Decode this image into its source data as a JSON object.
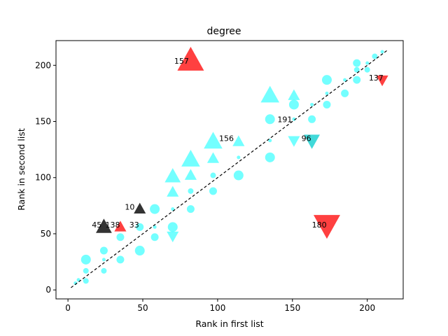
{
  "chart_data": {
    "type": "scatter",
    "title": "degree",
    "xlabel": "Rank in first list",
    "ylabel": "Rank in second list",
    "xlim": [
      -8,
      224
    ],
    "ylim": [
      -8,
      222
    ],
    "xticks": [
      0,
      50,
      100,
      150,
      200
    ],
    "yticks": [
      0,
      50,
      100,
      150,
      200
    ],
    "grid": false,
    "diagonal_reference": {
      "from": [
        2,
        2
      ],
      "to": [
        213,
        213
      ],
      "style": "dashed",
      "color": "#000000"
    },
    "colors": {
      "cyan": "#00FFFF",
      "red": "#FF0000",
      "black": "#000000",
      "teal": "#00CCCC"
    },
    "points": [
      {
        "x": 5,
        "y": 6,
        "marker": "circle",
        "size": "xs",
        "color": "cyan"
      },
      {
        "x": 7,
        "y": 9,
        "marker": "circle",
        "size": "xs",
        "color": "cyan"
      },
      {
        "x": 12,
        "y": 8,
        "marker": "circle",
        "size": "s",
        "color": "cyan"
      },
      {
        "x": 12,
        "y": 17,
        "marker": "circle",
        "size": "s",
        "color": "cyan"
      },
      {
        "x": 12,
        "y": 27,
        "marker": "circle",
        "size": "l",
        "color": "cyan"
      },
      {
        "x": 24,
        "y": 17,
        "marker": "circle",
        "size": "s",
        "color": "cyan"
      },
      {
        "x": 24,
        "y": 27,
        "marker": "circle",
        "size": "xs",
        "color": "cyan"
      },
      {
        "x": 24,
        "y": 35,
        "marker": "circle",
        "size": "m",
        "color": "cyan"
      },
      {
        "x": 35,
        "y": 27,
        "marker": "circle",
        "size": "m",
        "color": "cyan"
      },
      {
        "x": 35,
        "y": 47,
        "marker": "circle",
        "size": "m",
        "color": "cyan"
      },
      {
        "x": 48,
        "y": 35,
        "marker": "circle",
        "size": "l",
        "color": "cyan"
      },
      {
        "x": 48,
        "y": 56,
        "marker": "circle",
        "size": "m",
        "color": "cyan"
      },
      {
        "x": 58,
        "y": 47,
        "marker": "circle",
        "size": "m",
        "color": "cyan"
      },
      {
        "x": 58,
        "y": 56,
        "marker": "circle",
        "size": "xs",
        "color": "cyan"
      },
      {
        "x": 58,
        "y": 72,
        "marker": "circle",
        "size": "l",
        "color": "cyan"
      },
      {
        "x": 70,
        "y": 56,
        "marker": "circle",
        "size": "l",
        "color": "cyan"
      },
      {
        "x": 70,
        "y": 72,
        "marker": "circle",
        "size": "xs",
        "color": "cyan"
      },
      {
        "x": 82,
        "y": 72,
        "marker": "circle",
        "size": "m",
        "color": "cyan"
      },
      {
        "x": 82,
        "y": 88,
        "marker": "circle",
        "size": "s",
        "color": "cyan"
      },
      {
        "x": 97,
        "y": 88,
        "marker": "circle",
        "size": "m",
        "color": "cyan"
      },
      {
        "x": 97,
        "y": 102,
        "marker": "circle",
        "size": "s",
        "color": "cyan"
      },
      {
        "x": 114,
        "y": 102,
        "marker": "circle",
        "size": "l",
        "color": "cyan"
      },
      {
        "x": 114,
        "y": 118,
        "marker": "circle",
        "size": "xs",
        "color": "cyan"
      },
      {
        "x": 135,
        "y": 118,
        "marker": "circle",
        "size": "l",
        "color": "cyan"
      },
      {
        "x": 135,
        "y": 133,
        "marker": "circle",
        "size": "xs",
        "color": "cyan"
      },
      {
        "x": 135,
        "y": 152,
        "marker": "circle",
        "size": "l",
        "color": "cyan"
      },
      {
        "x": 151,
        "y": 152,
        "marker": "circle",
        "size": "xs",
        "color": "cyan"
      },
      {
        "x": 151,
        "y": 165,
        "marker": "circle",
        "size": "l",
        "color": "cyan"
      },
      {
        "x": 163,
        "y": 152,
        "marker": "circle",
        "size": "m",
        "color": "cyan"
      },
      {
        "x": 163,
        "y": 165,
        "marker": "circle",
        "size": "xs",
        "color": "cyan"
      },
      {
        "x": 173,
        "y": 165,
        "marker": "circle",
        "size": "m",
        "color": "cyan"
      },
      {
        "x": 173,
        "y": 175,
        "marker": "circle",
        "size": "xs",
        "color": "cyan"
      },
      {
        "x": 173,
        "y": 187,
        "marker": "circle",
        "size": "l",
        "color": "cyan"
      },
      {
        "x": 185,
        "y": 175,
        "marker": "circle",
        "size": "m",
        "color": "cyan"
      },
      {
        "x": 185,
        "y": 187,
        "marker": "circle",
        "size": "xs",
        "color": "cyan"
      },
      {
        "x": 193,
        "y": 187,
        "marker": "circle",
        "size": "m",
        "color": "cyan"
      },
      {
        "x": 193,
        "y": 196,
        "marker": "circle",
        "size": "s",
        "color": "cyan"
      },
      {
        "x": 193,
        "y": 202,
        "marker": "circle",
        "size": "m",
        "color": "cyan"
      },
      {
        "x": 200,
        "y": 196,
        "marker": "circle",
        "size": "s",
        "color": "cyan"
      },
      {
        "x": 200,
        "y": 202,
        "marker": "circle",
        "size": "xs",
        "color": "cyan"
      },
      {
        "x": 205,
        "y": 208,
        "marker": "circle",
        "size": "s",
        "color": "cyan"
      },
      {
        "x": 210,
        "y": 212,
        "marker": "circle",
        "size": "xs",
        "color": "cyan"
      },
      {
        "x": 70,
        "y": 87,
        "marker": "triangle-up",
        "size": "m",
        "color": "cyan"
      },
      {
        "x": 70,
        "y": 101,
        "marker": "triangle-up",
        "size": "l",
        "color": "cyan"
      },
      {
        "x": 82,
        "y": 102,
        "marker": "triangle-up",
        "size": "m",
        "color": "cyan"
      },
      {
        "x": 82,
        "y": 116,
        "marker": "triangle-up",
        "size": "xl",
        "color": "cyan"
      },
      {
        "x": 97,
        "y": 117,
        "marker": "triangle-up",
        "size": "m",
        "color": "cyan"
      },
      {
        "x": 97,
        "y": 132,
        "marker": "triangle-up",
        "size": "xl",
        "color": "cyan"
      },
      {
        "x": 114,
        "y": 132,
        "marker": "triangle-up",
        "size": "m",
        "color": "cyan"
      },
      {
        "x": 135,
        "y": 173,
        "marker": "triangle-up",
        "size": "xl",
        "color": "cyan"
      },
      {
        "x": 151,
        "y": 173,
        "marker": "triangle-up",
        "size": "m",
        "color": "cyan"
      },
      {
        "x": 70,
        "y": 48,
        "marker": "triangle-down",
        "size": "m",
        "color": "cyan"
      },
      {
        "x": 151,
        "y": 133,
        "marker": "triangle-down",
        "size": "m",
        "color": "cyan"
      },
      {
        "x": 163,
        "y": 133,
        "marker": "triangle-down",
        "size": "l",
        "color": "teal"
      },
      {
        "x": 82,
        "y": 204,
        "marker": "triangle-up",
        "size": "xxl",
        "color": "red"
      },
      {
        "x": 35,
        "y": 56,
        "marker": "triangle-up",
        "size": "m",
        "color": "red"
      },
      {
        "x": 210,
        "y": 187,
        "marker": "triangle-down",
        "size": "m",
        "color": "red"
      },
      {
        "x": 173,
        "y": 58,
        "marker": "triangle-down",
        "size": "xxl",
        "color": "red"
      },
      {
        "x": 24,
        "y": 56,
        "marker": "triangle-up",
        "size": "l",
        "color": "black"
      },
      {
        "x": 48,
        "y": 72,
        "marker": "triangle-up",
        "size": "m",
        "color": "black"
      }
    ],
    "annotations": [
      {
        "text": "157",
        "x": 71,
        "y": 204
      },
      {
        "text": "137",
        "x": 201,
        "y": 189
      },
      {
        "text": "191",
        "x": 140,
        "y": 152
      },
      {
        "text": "156",
        "x": 101,
        "y": 135
      },
      {
        "text": "96",
        "x": 156,
        "y": 135
      },
      {
        "text": "10",
        "x": 38,
        "y": 74
      },
      {
        "text": "45",
        "x": 16,
        "y": 58
      },
      {
        "text": "138",
        "x": 25,
        "y": 58
      },
      {
        "text": "33",
        "x": 41,
        "y": 58
      },
      {
        "text": "180",
        "x": 163,
        "y": 58
      }
    ]
  }
}
